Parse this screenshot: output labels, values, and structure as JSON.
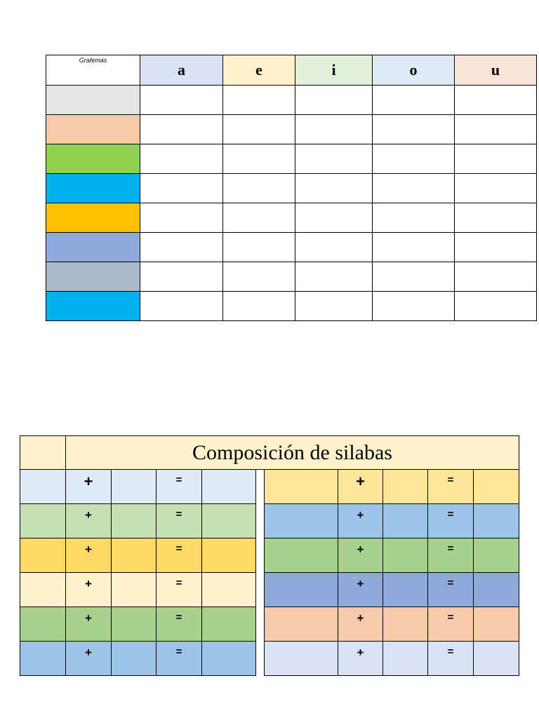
{
  "grafemas_table": {
    "header_label": "Grafemas",
    "vowels": [
      {
        "label": "a",
        "color": "#d9e2f3"
      },
      {
        "label": "e",
        "color": "#fff2cc"
      },
      {
        "label": "i",
        "color": "#e2efd9"
      },
      {
        "label": "o",
        "color": "#deebf7"
      },
      {
        "label": "u",
        "color": "#fbe4d5"
      }
    ],
    "row_colors": [
      "#e7e6e6",
      "#f7caac",
      "#92d050",
      "#00b0f0",
      "#ffc000",
      "#8eaadb",
      "#acb9ca",
      "#00b0f0"
    ]
  },
  "composicion_table": {
    "title": "Composición de silabas",
    "title_color": "#fff2cc",
    "plus_symbol": "+",
    "equals_symbol": "=",
    "left_rows": [
      {
        "color": "#deebf7",
        "big_plus": true
      },
      {
        "color": "#c5e0b3",
        "big_plus": false
      },
      {
        "color": "#ffd966",
        "big_plus": false
      },
      {
        "color": "#fff2cc",
        "big_plus": false
      },
      {
        "color": "#a8d08d",
        "big_plus": false
      },
      {
        "color": "#9dc3e6",
        "big_plus": false
      }
    ],
    "right_rows": [
      {
        "color": "#ffe599",
        "big_plus": true
      },
      {
        "color": "#9dc3e6",
        "big_plus": false
      },
      {
        "color": "#a8d08d",
        "big_plus": false
      },
      {
        "color": "#8eaadb",
        "big_plus": false
      },
      {
        "color": "#f7caac",
        "big_plus": false
      },
      {
        "color": "#d9e2f3",
        "big_plus": false
      }
    ]
  }
}
